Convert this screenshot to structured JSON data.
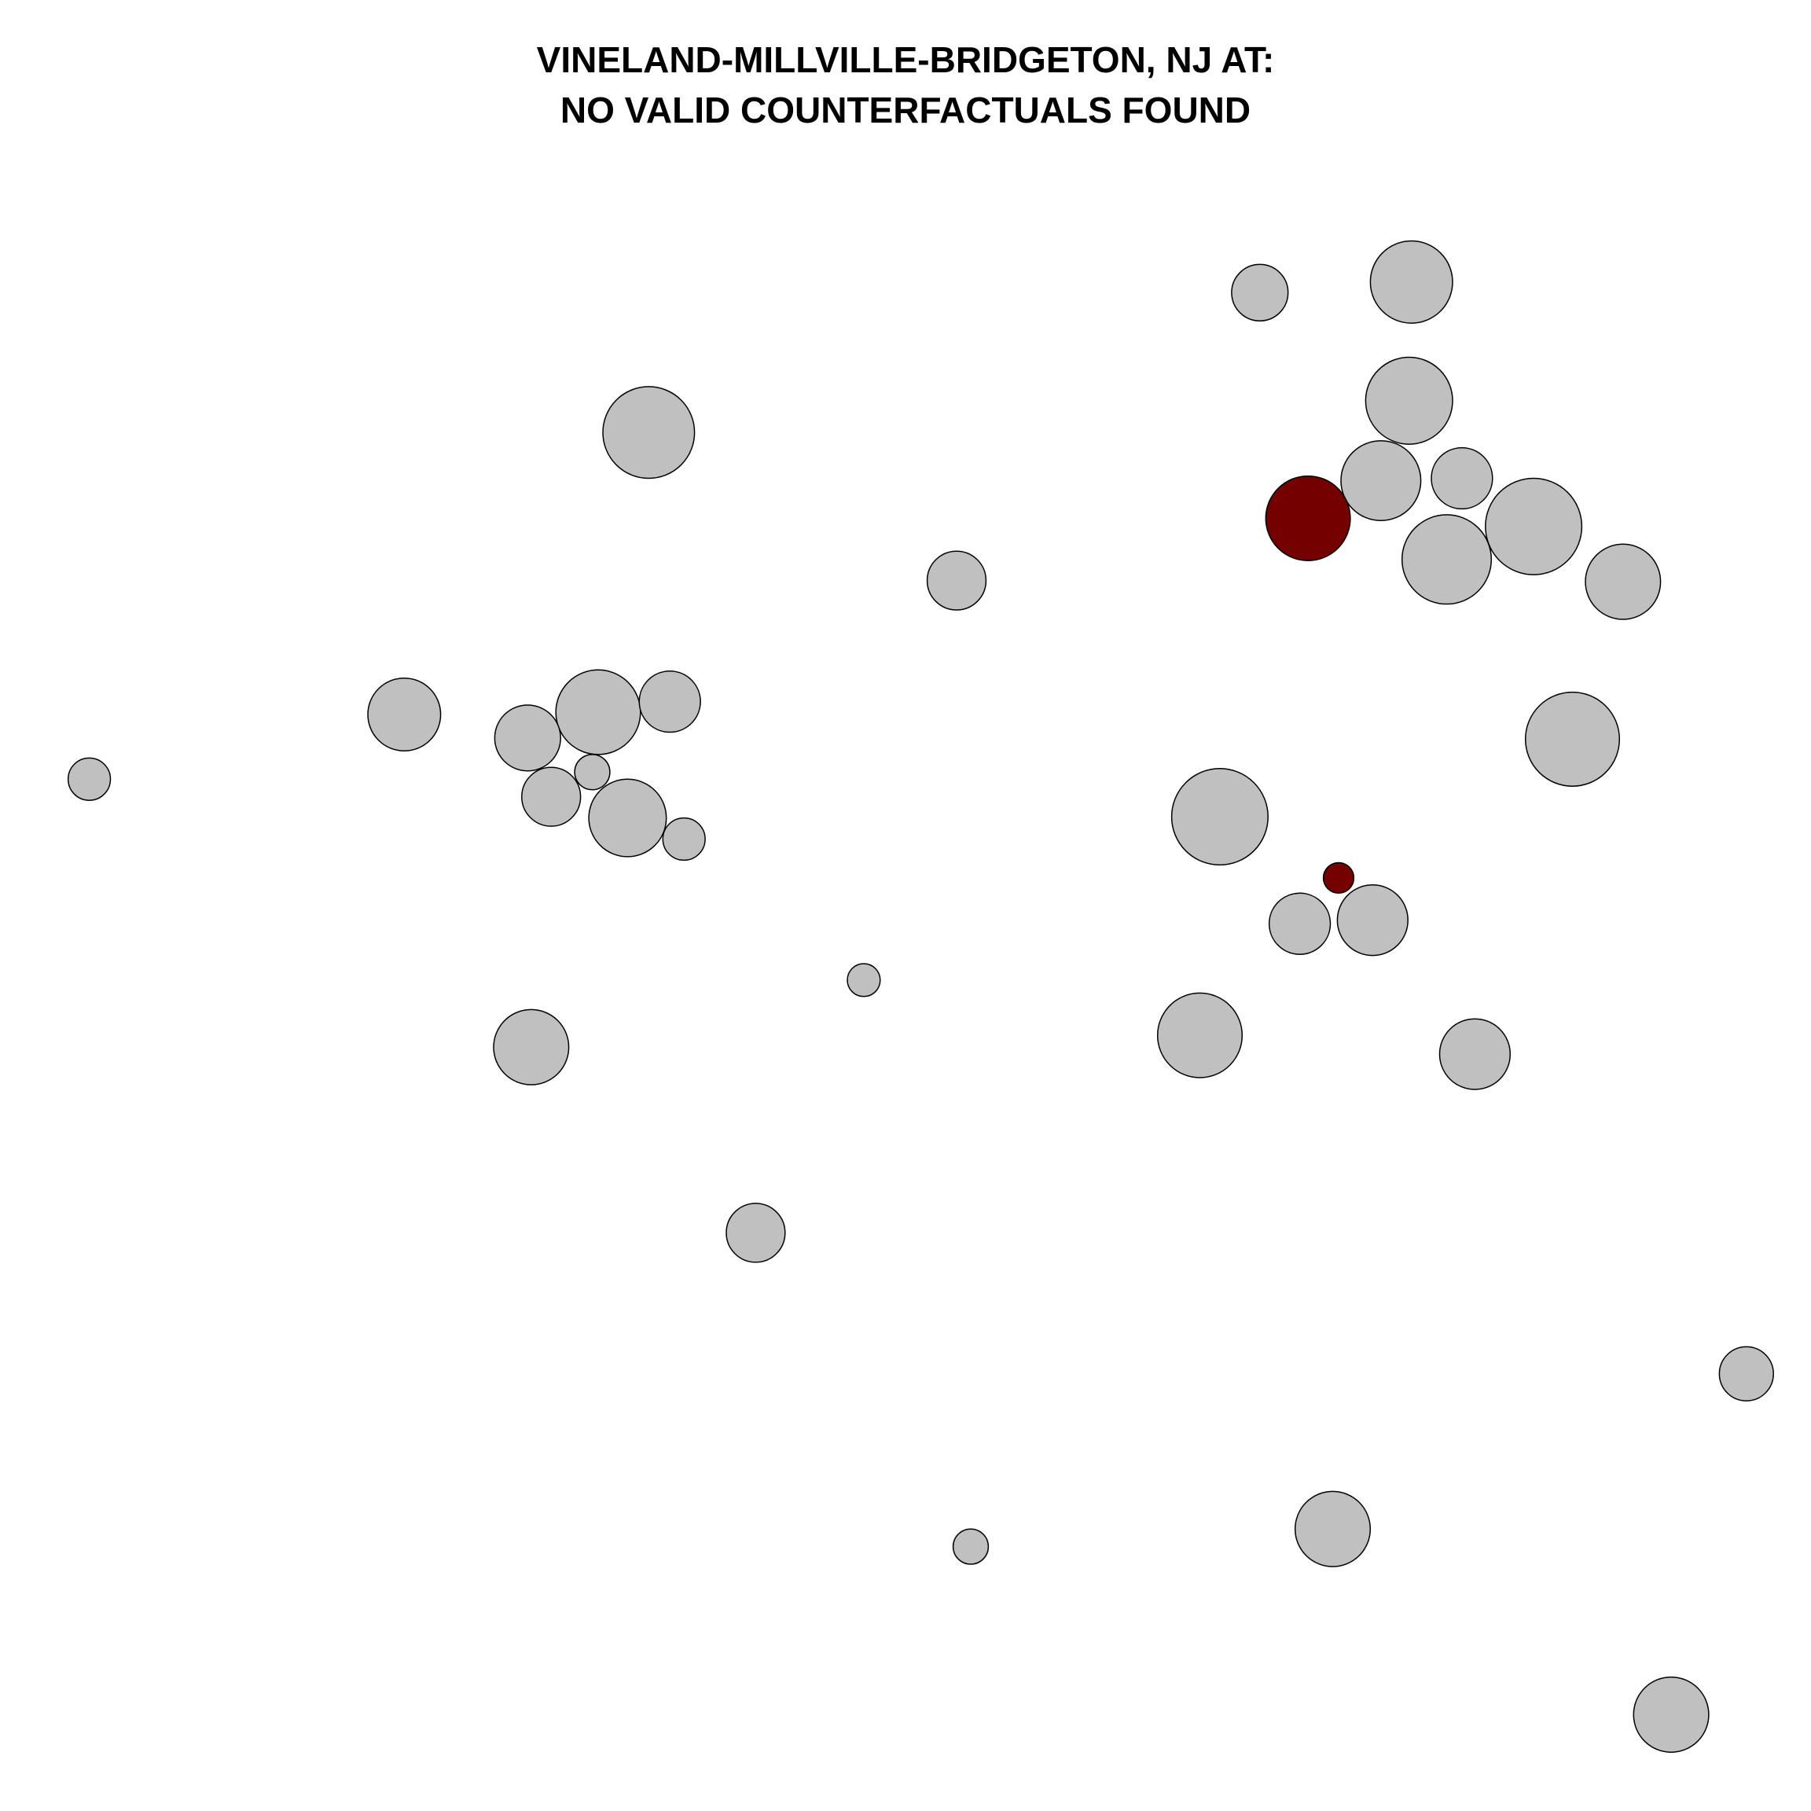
{
  "chart_data": {
    "type": "scatter",
    "title": "VINELAND-MILLVILLE-BRIDGETON, NJ AT:",
    "subtitle": "NO VALID COUNTERFACTUALS FOUND",
    "xlabel": "",
    "ylabel": "",
    "grid": false,
    "axes_visible": false,
    "xlim": [
      0,
      1541
    ],
    "ylim": [
      0,
      1541
    ],
    "size_unit": "radius",
    "colors": {
      "default": "#c0c0c0",
      "highlight": "#750000",
      "outline": "#000000"
    },
    "points": [
      {
        "x": 1072,
        "y": 249,
        "r": 24,
        "highlight": false
      },
      {
        "x": 1201,
        "y": 240,
        "r": 35,
        "highlight": false
      },
      {
        "x": 1199,
        "y": 341,
        "r": 37,
        "highlight": false
      },
      {
        "x": 552,
        "y": 368,
        "r": 39,
        "highlight": false
      },
      {
        "x": 1175,
        "y": 409,
        "r": 34,
        "highlight": false
      },
      {
        "x": 1244,
        "y": 407,
        "r": 26,
        "highlight": false
      },
      {
        "x": 1113,
        "y": 441,
        "r": 36,
        "highlight": true
      },
      {
        "x": 1305,
        "y": 448,
        "r": 41,
        "highlight": false
      },
      {
        "x": 1231,
        "y": 476,
        "r": 38,
        "highlight": false
      },
      {
        "x": 1381,
        "y": 495,
        "r": 32,
        "highlight": false
      },
      {
        "x": 814,
        "y": 494,
        "r": 25,
        "highlight": false
      },
      {
        "x": 344,
        "y": 608,
        "r": 31,
        "highlight": false
      },
      {
        "x": 509,
        "y": 606,
        "r": 36,
        "highlight": false
      },
      {
        "x": 570,
        "y": 597,
        "r": 26,
        "highlight": false
      },
      {
        "x": 449,
        "y": 628,
        "r": 28,
        "highlight": false
      },
      {
        "x": 1338,
        "y": 629,
        "r": 40,
        "highlight": false
      },
      {
        "x": 76,
        "y": 663,
        "r": 18,
        "highlight": false
      },
      {
        "x": 504,
        "y": 657,
        "r": 15,
        "highlight": false
      },
      {
        "x": 469,
        "y": 678,
        "r": 25,
        "highlight": false
      },
      {
        "x": 534,
        "y": 696,
        "r": 33,
        "highlight": false
      },
      {
        "x": 582,
        "y": 714,
        "r": 18,
        "highlight": false
      },
      {
        "x": 1038,
        "y": 695,
        "r": 41,
        "highlight": false
      },
      {
        "x": 1139,
        "y": 747,
        "r": 13,
        "highlight": true
      },
      {
        "x": 1106,
        "y": 786,
        "r": 26,
        "highlight": false
      },
      {
        "x": 1168,
        "y": 783,
        "r": 30,
        "highlight": false
      },
      {
        "x": 735,
        "y": 834,
        "r": 14,
        "highlight": false
      },
      {
        "x": 452,
        "y": 891,
        "r": 32,
        "highlight": false
      },
      {
        "x": 1021,
        "y": 881,
        "r": 36,
        "highlight": false
      },
      {
        "x": 1255,
        "y": 897,
        "r": 30,
        "highlight": false
      },
      {
        "x": 643,
        "y": 1049,
        "r": 25,
        "highlight": false
      },
      {
        "x": 1486,
        "y": 1169,
        "r": 23,
        "highlight": false
      },
      {
        "x": 1134,
        "y": 1301,
        "r": 32,
        "highlight": false
      },
      {
        "x": 826,
        "y": 1316,
        "r": 15,
        "highlight": false
      },
      {
        "x": 1422,
        "y": 1459,
        "r": 32,
        "highlight": false
      }
    ]
  }
}
